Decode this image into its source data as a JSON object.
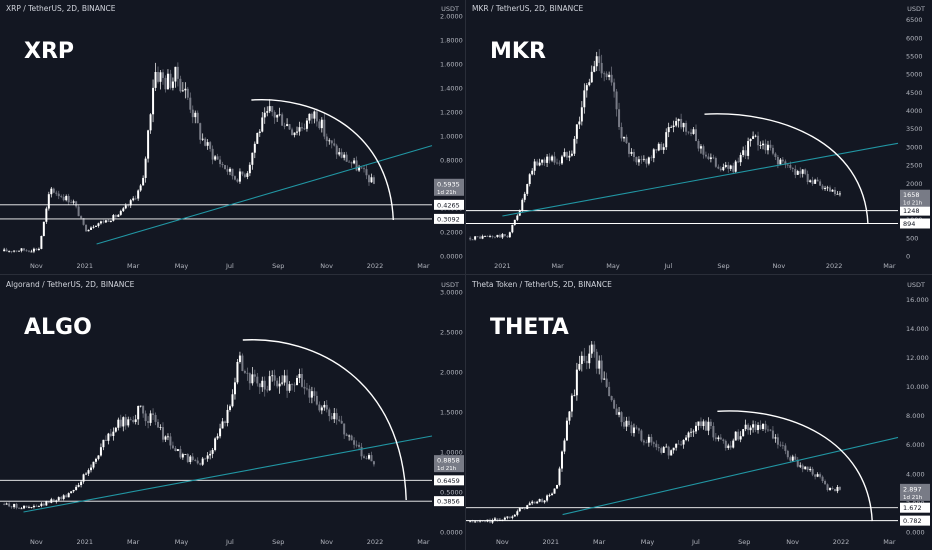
{
  "chart_data": [
    {
      "type": "candlestick",
      "header": "XRP / TetherUS, 2D, BINANCE",
      "big_label": "XRP",
      "price_unit": "USDT",
      "yticks": [
        "2.0000",
        "1.8000",
        "1.6000",
        "1.4000",
        "1.2000",
        "1.0000",
        "0.8000",
        "0.6000",
        "0.4000",
        "0.2000",
        "0.0000"
      ],
      "ylim": [
        0,
        2.0
      ],
      "xticks": [
        "Nov",
        "2021",
        "Mar",
        "May",
        "Jul",
        "Sep",
        "Nov",
        "2022",
        "Mar"
      ],
      "last_price": "0.5935",
      "countdown": "1d 21h",
      "levels": [
        {
          "value": 0.4265,
          "label": "0.4265"
        },
        {
          "value": 0.3092,
          "label": "0.3092"
        }
      ],
      "close_series": [
        0.04,
        0.05,
        0.05,
        0.06,
        0.56,
        0.5,
        0.45,
        0.22,
        0.27,
        0.3,
        0.35,
        0.45,
        0.6,
        1.55,
        1.45,
        1.5,
        1.3,
        1.0,
        0.85,
        0.75,
        0.65,
        0.7,
        1.05,
        1.2,
        1.15,
        1.05,
        1.1,
        1.2,
        0.95,
        0.85,
        0.78,
        0.7,
        0.6
      ],
      "trend_line": {
        "from": [
          0.22,
          0.1
        ],
        "to": [
          1.0,
          0.92
        ]
      },
      "arc": {
        "peak_value": 1.3,
        "start_x": 0.58,
        "end_x": 0.91,
        "end_value": 0.3
      }
    },
    {
      "type": "candlestick",
      "header": "MKR / TetherUS, 2D, BINANCE",
      "big_label": "MKR",
      "price_unit": "USDT",
      "yticks": [
        "6500",
        "6000",
        "5500",
        "5000",
        "4500",
        "4000",
        "3500",
        "3000",
        "2500",
        "2000",
        "1500",
        "1000",
        "500",
        "0"
      ],
      "ylim": [
        0,
        6600
      ],
      "xticks": [
        "2021",
        "Mar",
        "May",
        "Jul",
        "Sep",
        "Nov",
        "2022",
        "Mar"
      ],
      "last_price": "1658",
      "countdown": "1d 21h",
      "levels": [
        {
          "value": 1248,
          "label": "1248"
        },
        {
          "value": 894,
          "label": "894"
        }
      ],
      "close_series": [
        500,
        520,
        540,
        560,
        1400,
        2500,
        2700,
        2600,
        3000,
        4500,
        5500,
        4800,
        3200,
        2500,
        2700,
        3000,
        3800,
        3600,
        3000,
        2600,
        2400,
        2500,
        3200,
        3100,
        2700,
        2400,
        2300,
        2000,
        1800,
        1650
      ],
      "trend_line": {
        "from": [
          0.08,
          1100
        ],
        "to": [
          1.0,
          3100
        ]
      },
      "arc": {
        "peak_value": 3900,
        "start_x": 0.55,
        "end_x": 0.93,
        "end_value": 900
      }
    },
    {
      "type": "candlestick",
      "header": "Algorand / TetherUS, 2D, BINANCE",
      "big_label": "ALGO",
      "price_unit": "USDT",
      "yticks": [
        "3.0000",
        "2.5000",
        "2.0000",
        "1.5000",
        "1.0000",
        "0.5000",
        "0.0000"
      ],
      "ylim": [
        0,
        3.0
      ],
      "xticks": [
        "Nov",
        "2021",
        "Mar",
        "May",
        "Jul",
        "Sep",
        "Nov",
        "2022",
        "Mar"
      ],
      "last_price": "0.8858",
      "countdown": "1d 21h",
      "levels": [
        {
          "value": 0.6459,
          "label": "0.6459"
        },
        {
          "value": 0.3856,
          "label": "0.3856"
        }
      ],
      "close_series": [
        0.35,
        0.32,
        0.3,
        0.33,
        0.4,
        0.45,
        0.6,
        0.8,
        1.1,
        1.3,
        1.4,
        1.5,
        1.4,
        1.2,
        1.0,
        0.9,
        0.85,
        1.1,
        1.4,
        2.2,
        1.9,
        1.8,
        1.9,
        1.85,
        1.9,
        1.7,
        1.5,
        1.4,
        1.2,
        1.0,
        0.88
      ],
      "trend_line": {
        "from": [
          0.05,
          0.25
        ],
        "to": [
          1.0,
          1.2
        ]
      },
      "arc": {
        "peak_value": 2.4,
        "start_x": 0.56,
        "end_x": 0.94,
        "end_value": 0.4
      }
    },
    {
      "type": "candlestick",
      "header": "Theta Token / TetherUS, 2D, BINANCE",
      "big_label": "THETA",
      "price_unit": "USDT",
      "yticks": [
        "16.000",
        "14.000",
        "12.000",
        "10.000",
        "8.000",
        "6.000",
        "4.000",
        "2.000",
        "0.000"
      ],
      "ylim": [
        0,
        16.5
      ],
      "xticks": [
        "Nov",
        "2021",
        "Mar",
        "May",
        "Jul",
        "Sep",
        "Nov",
        "2022",
        "Mar"
      ],
      "last_price": "2.897",
      "countdown": "1d 21h",
      "levels": [
        {
          "value": 1.672,
          "label": "1.672"
        },
        {
          "value": 0.782,
          "label": "0.782"
        }
      ],
      "close_series": [
        0.7,
        0.7,
        0.8,
        1.0,
        1.5,
        2.0,
        2.2,
        3.0,
        8.0,
        12.0,
        12.5,
        10.0,
        8.0,
        7.0,
        6.5,
        6.0,
        5.5,
        6.0,
        7.0,
        7.5,
        6.5,
        6.0,
        7.0,
        7.5,
        7.0,
        6.0,
        5.0,
        4.5,
        4.0,
        3.0,
        2.9
      ],
      "trend_line": {
        "from": [
          0.22,
          1.2
        ],
        "to": [
          1.0,
          6.5
        ]
      },
      "arc": {
        "peak_value": 8.3,
        "start_x": 0.58,
        "end_x": 0.94,
        "end_value": 0.75
      }
    }
  ],
  "colors": {
    "background": "#131722",
    "up": "#ffffff",
    "down": "#787b86",
    "trend": "#2196a3",
    "arc": "#ffffff",
    "level": "#ffffff",
    "axis_text": "#b2b5be",
    "price_tag": "#787b86"
  }
}
